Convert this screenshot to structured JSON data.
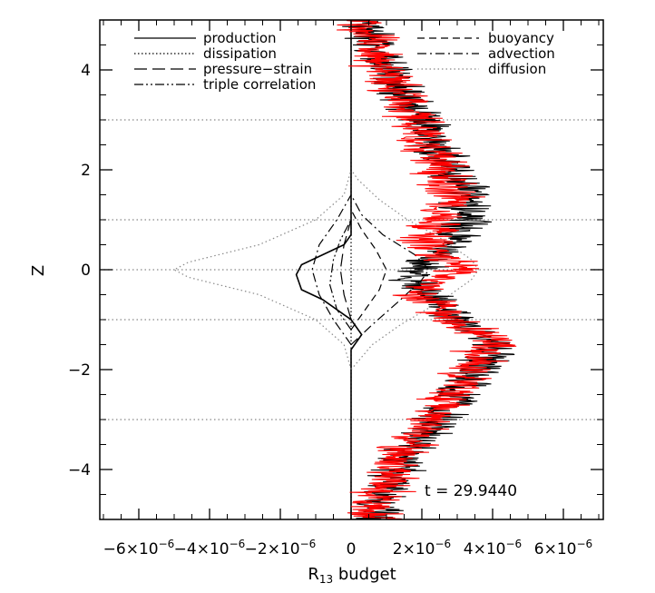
{
  "chart_data": {
    "type": "line",
    "title": "",
    "xlabel": "R",
    "xlabel_sub": "13",
    "xlabel_suffix": " budget",
    "ylabel": "Z",
    "xlim": [
      -7e-06,
      7e-06
    ],
    "ylim": [
      -5,
      5
    ],
    "x_ticks": [
      -6e-06,
      -4e-06,
      -2e-06,
      0,
      2e-06,
      4e-06,
      6e-06
    ],
    "x_tick_labels": [
      {
        "m": "−6×10",
        "e": "−6"
      },
      {
        "m": "−4×10",
        "e": "−6"
      },
      {
        "m": "−2×10",
        "e": "−6"
      },
      {
        "m": "0",
        "e": ""
      },
      {
        "m": "2×10",
        "e": "−6"
      },
      {
        "m": "4×10",
        "e": "−6"
      },
      {
        "m": "6×10",
        "e": "−6"
      }
    ],
    "y_ticks": [
      -4,
      -2,
      0,
      2,
      4
    ],
    "y_tick_labels": [
      "−4",
      "−2",
      "0",
      "2",
      "4"
    ],
    "grid": false,
    "reference_lines_z": [
      3,
      1,
      0,
      -1,
      -3
    ],
    "legend_position": "top",
    "legend": [
      {
        "name": "production",
        "dash": "solid",
        "col": 0
      },
      {
        "name": "dissipation",
        "dash": "dotted",
        "col": 0
      },
      {
        "name": "pressure−strain",
        "dash": "longdash",
        "col": 0
      },
      {
        "name": "triple correlation",
        "dash": "dashdotdot",
        "col": 0
      },
      {
        "name": "buoyancy",
        "dash": "dashed",
        "col": 1
      },
      {
        "name": "advection",
        "dash": "dashdot",
        "col": 1
      },
      {
        "name": "diffusion",
        "dash": "dotted-gray",
        "col": 1
      }
    ],
    "annotation": "t  =  29.9440",
    "series": [
      {
        "name": "production",
        "style": "solid",
        "color": "#000000",
        "points": [
          [
            0,
            -5
          ],
          [
            0,
            -2
          ],
          [
            0,
            -1.6
          ],
          [
            3e-07,
            -1.3
          ],
          [
            0,
            -1
          ],
          [
            -8e-07,
            -0.6
          ],
          [
            -1.4e-06,
            -0.4
          ],
          [
            -1.55e-06,
            -0.1
          ],
          [
            -1.4e-06,
            0.1
          ],
          [
            -8e-07,
            0.3
          ],
          [
            -2e-07,
            0.5
          ],
          [
            0,
            0.7
          ],
          [
            0,
            5
          ]
        ]
      },
      {
        "name": "diffusion",
        "style": "dotted-gray",
        "color": "#888888",
        "points": [
          [
            0,
            -2
          ],
          [
            -2e-07,
            -1.5
          ],
          [
            -1e-06,
            -1
          ],
          [
            -2.6e-06,
            -0.5
          ],
          [
            -4.6e-06,
            -0.15
          ],
          [
            -5e-06,
            0
          ],
          [
            -4.6e-06,
            0.15
          ],
          [
            -2.6e-06,
            0.5
          ],
          [
            -1e-06,
            1
          ],
          [
            -2e-07,
            1.5
          ],
          [
            0,
            2
          ]
        ]
      },
      {
        "name": "diffusion",
        "style": "dotted-gray",
        "color": "#888888",
        "points": [
          [
            0,
            -2
          ],
          [
            6e-07,
            -1.5
          ],
          [
            1.4e-06,
            -1.1
          ],
          [
            2.6e-06,
            -0.6
          ],
          [
            3.4e-06,
            -0.2
          ],
          [
            3.6e-06,
            0
          ],
          [
            3.4e-06,
            0.2
          ],
          [
            2.6e-06,
            0.6
          ],
          [
            1.6e-06,
            1
          ],
          [
            8e-07,
            1.4
          ],
          [
            2e-07,
            1.8
          ],
          [
            0,
            2
          ]
        ]
      },
      {
        "name": "advection",
        "style": "dashdot",
        "color": "#000000",
        "points": [
          [
            0,
            -1.5
          ],
          [
            -5e-07,
            -1
          ],
          [
            -9e-07,
            -0.5
          ],
          [
            -1.1e-06,
            0
          ],
          [
            -9e-07,
            0.5
          ],
          [
            -4e-07,
            1
          ],
          [
            0,
            1.5
          ]
        ]
      },
      {
        "name": "advection",
        "style": "dashdot",
        "color": "#000000",
        "points": [
          [
            0,
            -1.5
          ],
          [
            6e-07,
            -1.1
          ],
          [
            1.4e-06,
            -0.6
          ],
          [
            2e-06,
            -0.2
          ],
          [
            2.2e-06,
            0
          ],
          [
            1.8e-06,
            0.3
          ],
          [
            9e-07,
            0.7
          ],
          [
            3e-07,
            1.1
          ],
          [
            0,
            1.5
          ]
        ]
      },
      {
        "name": "triple correlation",
        "style": "dashdotdot",
        "color": "#000000",
        "points": [
          [
            0,
            -1.2
          ],
          [
            -4e-07,
            -0.8
          ],
          [
            -6e-07,
            -0.3
          ],
          [
            -5e-07,
            0.2
          ],
          [
            -3e-07,
            0.6
          ],
          [
            0,
            1
          ]
        ]
      },
      {
        "name": "buoyancy",
        "style": "dashed",
        "color": "#000000",
        "points": [
          [
            0,
            -1.2
          ],
          [
            4e-07,
            -0.8
          ],
          [
            8e-07,
            -0.4
          ],
          [
            1e-06,
            0
          ],
          [
            7e-07,
            0.4
          ],
          [
            3e-07,
            0.8
          ],
          [
            0,
            1.2
          ]
        ]
      },
      {
        "name": "pressure−strain",
        "style": "longdash",
        "color": "#000000",
        "points": [
          [
            0,
            -1
          ],
          [
            -2e-07,
            -0.5
          ],
          [
            -3e-07,
            0
          ],
          [
            -2e-07,
            0.5
          ],
          [
            0,
            1
          ]
        ]
      },
      {
        "name": "dissipation",
        "style": "dotted",
        "color": "#000000",
        "points": [
          [
            0,
            -5
          ],
          [
            0,
            5
          ]
        ]
      },
      {
        "name": "",
        "style": "noisy",
        "color": "#000000",
        "trend": [
          [
            -5,
            5e-07
          ],
          [
            -4,
            1.3e-06
          ],
          [
            -3,
            2.4e-06
          ],
          [
            -2,
            3.6e-06
          ],
          [
            -1.4,
            4.1e-06
          ],
          [
            -1,
            3e-06
          ],
          [
            -0.5,
            2.2e-06
          ],
          [
            -0.1,
            1.7e-06
          ],
          [
            0,
            2e-06
          ],
          [
            0.4,
            2.6e-06
          ],
          [
            1,
            3.2e-06
          ],
          [
            1.5,
            3.3e-06
          ],
          [
            2,
            2.8e-06
          ],
          [
            3,
            2e-06
          ],
          [
            4,
            1e-06
          ],
          [
            5,
            3e-07
          ]
        ],
        "amplitude": 9e-07
      },
      {
        "name": "",
        "style": "noisy",
        "color": "#ff0000",
        "trend": [
          [
            -5,
            5e-07
          ],
          [
            -4,
            1.2e-06
          ],
          [
            -3,
            2.2e-06
          ],
          [
            -2,
            3.4e-06
          ],
          [
            -1.4,
            4e-06
          ],
          [
            -1,
            2.8e-06
          ],
          [
            -0.5,
            2e-06
          ],
          [
            -0.2,
            2.5e-06
          ],
          [
            0,
            3e-06
          ],
          [
            0.3,
            2.4e-06
          ],
          [
            0.7,
            2.1e-06
          ],
          [
            1,
            2.6e-06
          ],
          [
            1.5,
            2.9e-06
          ],
          [
            2,
            2.5e-06
          ],
          [
            3,
            1.8e-06
          ],
          [
            4,
            9e-07
          ],
          [
            5,
            2e-07
          ]
        ],
        "amplitude": 1e-06
      }
    ]
  }
}
